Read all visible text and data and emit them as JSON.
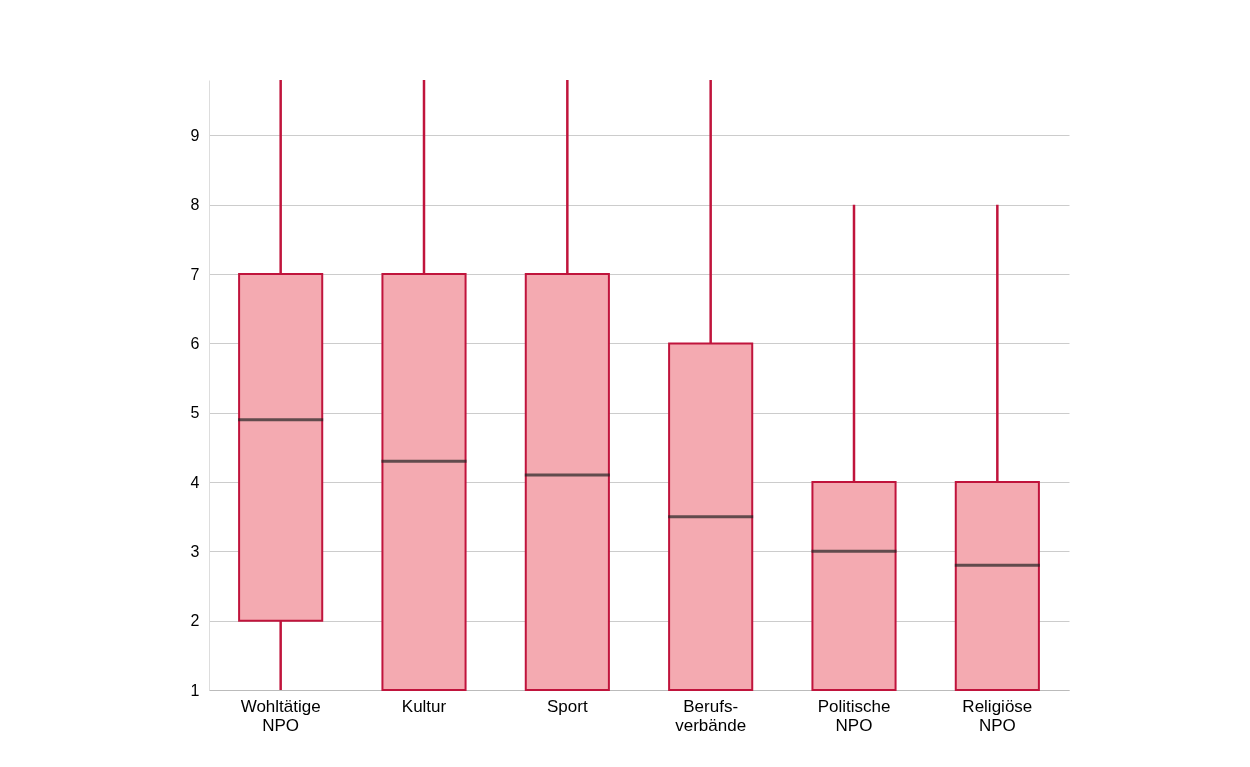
{
  "chart_data": {
    "type": "box",
    "categories": [
      "Wohltätige\nNPO",
      "Kultur",
      "Sport",
      "Berufs-\nverbände",
      "Politische\nNPO",
      "Religiöse\nNPO"
    ],
    "boxes": [
      {
        "low": 1,
        "q1": 2,
        "median": 4.9,
        "q3": 7,
        "high": 9.8
      },
      {
        "low": 1,
        "q1": 1,
        "median": 4.3,
        "q3": 7,
        "high": 9.8
      },
      {
        "low": 1,
        "q1": 1,
        "median": 4.1,
        "q3": 7,
        "high": 9.8
      },
      {
        "low": 1,
        "q1": 1,
        "median": 3.5,
        "q3": 6,
        "high": 9.8
      },
      {
        "low": 1,
        "q1": 1,
        "median": 3.0,
        "q3": 4,
        "high": 8
      },
      {
        "low": 1,
        "q1": 1,
        "median": 2.8,
        "q3": 4,
        "high": 8
      }
    ],
    "color": "#f4aab1",
    "ylim": [
      1,
      9.8
    ],
    "yticks": [
      1,
      2,
      3,
      4,
      5,
      6,
      7,
      8,
      9
    ],
    "grid": "y"
  }
}
